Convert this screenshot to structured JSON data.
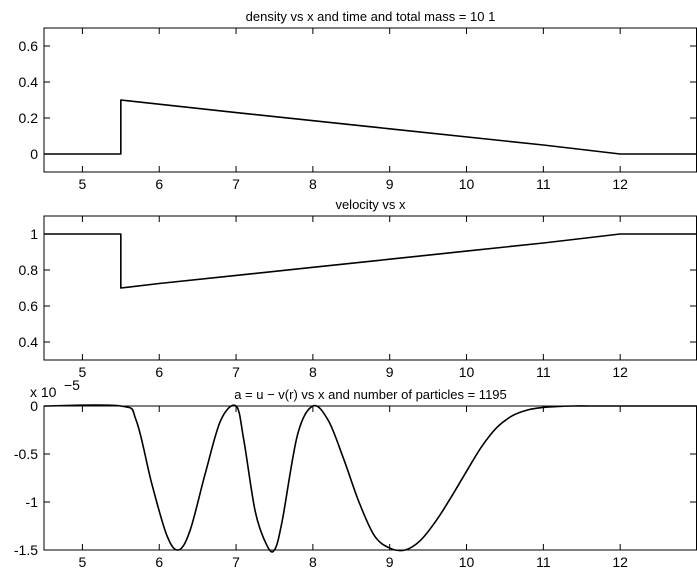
{
  "chart_data": [
    {
      "type": "line",
      "title": "density  vs x and time and total mass  = 10          1",
      "xlabel": "",
      "ylabel": "",
      "xlim": [
        4.5,
        13
      ],
      "ylim": [
        -0.1,
        0.7
      ],
      "xticks": [
        5,
        6,
        7,
        8,
        9,
        10,
        11,
        12
      ],
      "yticks": [
        0,
        0.2,
        0.4,
        0.6
      ],
      "ytick_labels": [
        "0",
        "0.2",
        "0.4",
        "0.6"
      ],
      "series": [
        {
          "x": [
            4.5,
            5.5,
            5.5,
            7.0,
            9.0,
            11.0,
            12.0,
            13.0
          ],
          "y": [
            0,
            0,
            0.3,
            0.23,
            0.14,
            0.05,
            0,
            0
          ]
        }
      ]
    },
    {
      "type": "line",
      "title": "velocity vs x",
      "xlabel": "",
      "ylabel": "",
      "xlim": [
        4.5,
        13
      ],
      "ylim": [
        0.3,
        1.1
      ],
      "xticks": [
        5,
        6,
        7,
        8,
        9,
        10,
        11,
        12
      ],
      "yticks": [
        0.4,
        0.6,
        0.8,
        1
      ],
      "ytick_labels": [
        "0.4",
        "0.6",
        "0.8",
        "1"
      ],
      "series": [
        {
          "x": [
            4.5,
            5.5,
            5.5,
            6.0,
            7.0,
            8.0,
            9.0,
            10.0,
            11.0,
            12.0,
            13.0
          ],
          "y": [
            1,
            1,
            0.7,
            0.725,
            0.77,
            0.815,
            0.86,
            0.905,
            0.95,
            1,
            1
          ]
        }
      ]
    },
    {
      "type": "line",
      "title": "a = u − v(r) vs x and number of particles  = 1195",
      "xlabel": "",
      "ylabel": "",
      "y_multiplier": "x 10",
      "y_multiplier_exponent": "−5",
      "xlim": [
        4.5,
        13
      ],
      "ylim": [
        -1.5,
        0
      ],
      "xticks": [
        5,
        6,
        7,
        8,
        9,
        10,
        11,
        12
      ],
      "yticks": [
        -1.5,
        -1,
        -0.5,
        0
      ],
      "ytick_labels": [
        "-1.5",
        "-1",
        "-0.5",
        "0"
      ],
      "series": [
        {
          "x": [
            4.5,
            5.5,
            5.7,
            5.9,
            6.1,
            6.25,
            6.4,
            6.6,
            6.8,
            7.0,
            7.1,
            7.25,
            7.4,
            7.5,
            7.6,
            7.8,
            8.0,
            8.2,
            8.4,
            8.6,
            8.8,
            9.0,
            9.2,
            9.4,
            9.6,
            9.8,
            10.0,
            10.2,
            10.4,
            10.6,
            10.8,
            11.0,
            11.2,
            11.4,
            11.6,
            12.0,
            13.0
          ],
          "y": [
            0,
            0,
            -0.15,
            -0.8,
            -1.35,
            -1.5,
            -1.3,
            -0.7,
            -0.15,
            0,
            -0.35,
            -1.1,
            -1.45,
            -1.5,
            -1.2,
            -0.3,
            0,
            -0.15,
            -0.55,
            -1.0,
            -1.35,
            -1.48,
            -1.5,
            -1.4,
            -1.2,
            -0.95,
            -0.68,
            -0.42,
            -0.22,
            -0.1,
            -0.04,
            -0.015,
            -0.005,
            0,
            0,
            0,
            0
          ]
        }
      ]
    }
  ]
}
